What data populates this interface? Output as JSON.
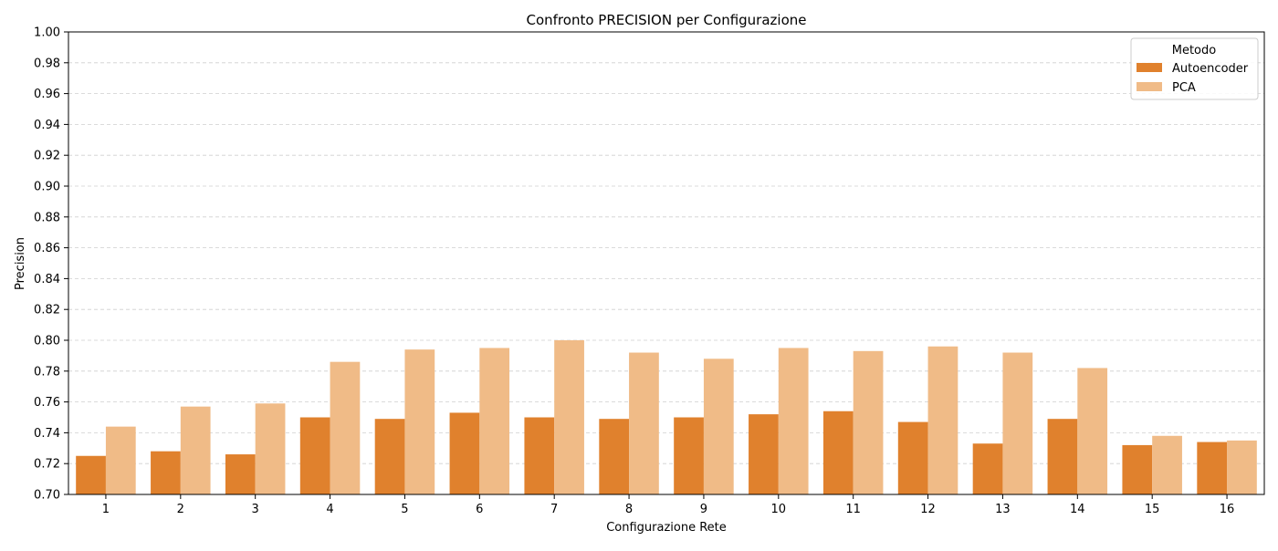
{
  "chart_data": {
    "type": "bar",
    "title": "Confronto PRECISION per Configurazione",
    "xlabel": "Configurazione Rete",
    "ylabel": "Precision",
    "ylim": [
      0.7,
      1.0
    ],
    "yticks": [
      "0.70",
      "0.72",
      "0.74",
      "0.76",
      "0.78",
      "0.80",
      "0.82",
      "0.84",
      "0.86",
      "0.88",
      "0.90",
      "0.92",
      "0.94",
      "0.96",
      "0.98",
      "1.00"
    ],
    "grid": true,
    "legend_title": "Metodo",
    "legend_placement": "top-right",
    "categories": [
      "1",
      "2",
      "3",
      "4",
      "5",
      "6",
      "7",
      "8",
      "9",
      "10",
      "11",
      "12",
      "13",
      "14",
      "15",
      "16"
    ],
    "series": [
      {
        "name": "Autoencoder",
        "color": "#e0812d",
        "values": [
          0.725,
          0.728,
          0.726,
          0.75,
          0.749,
          0.753,
          0.75,
          0.749,
          0.75,
          0.752,
          0.754,
          0.747,
          0.733,
          0.749,
          0.732,
          0.734
        ]
      },
      {
        "name": "PCA",
        "color": "#f0bb87",
        "values": [
          0.744,
          0.757,
          0.759,
          0.786,
          0.794,
          0.795,
          0.8,
          0.792,
          0.788,
          0.795,
          0.793,
          0.796,
          0.792,
          0.782,
          0.738,
          0.735
        ]
      }
    ]
  }
}
